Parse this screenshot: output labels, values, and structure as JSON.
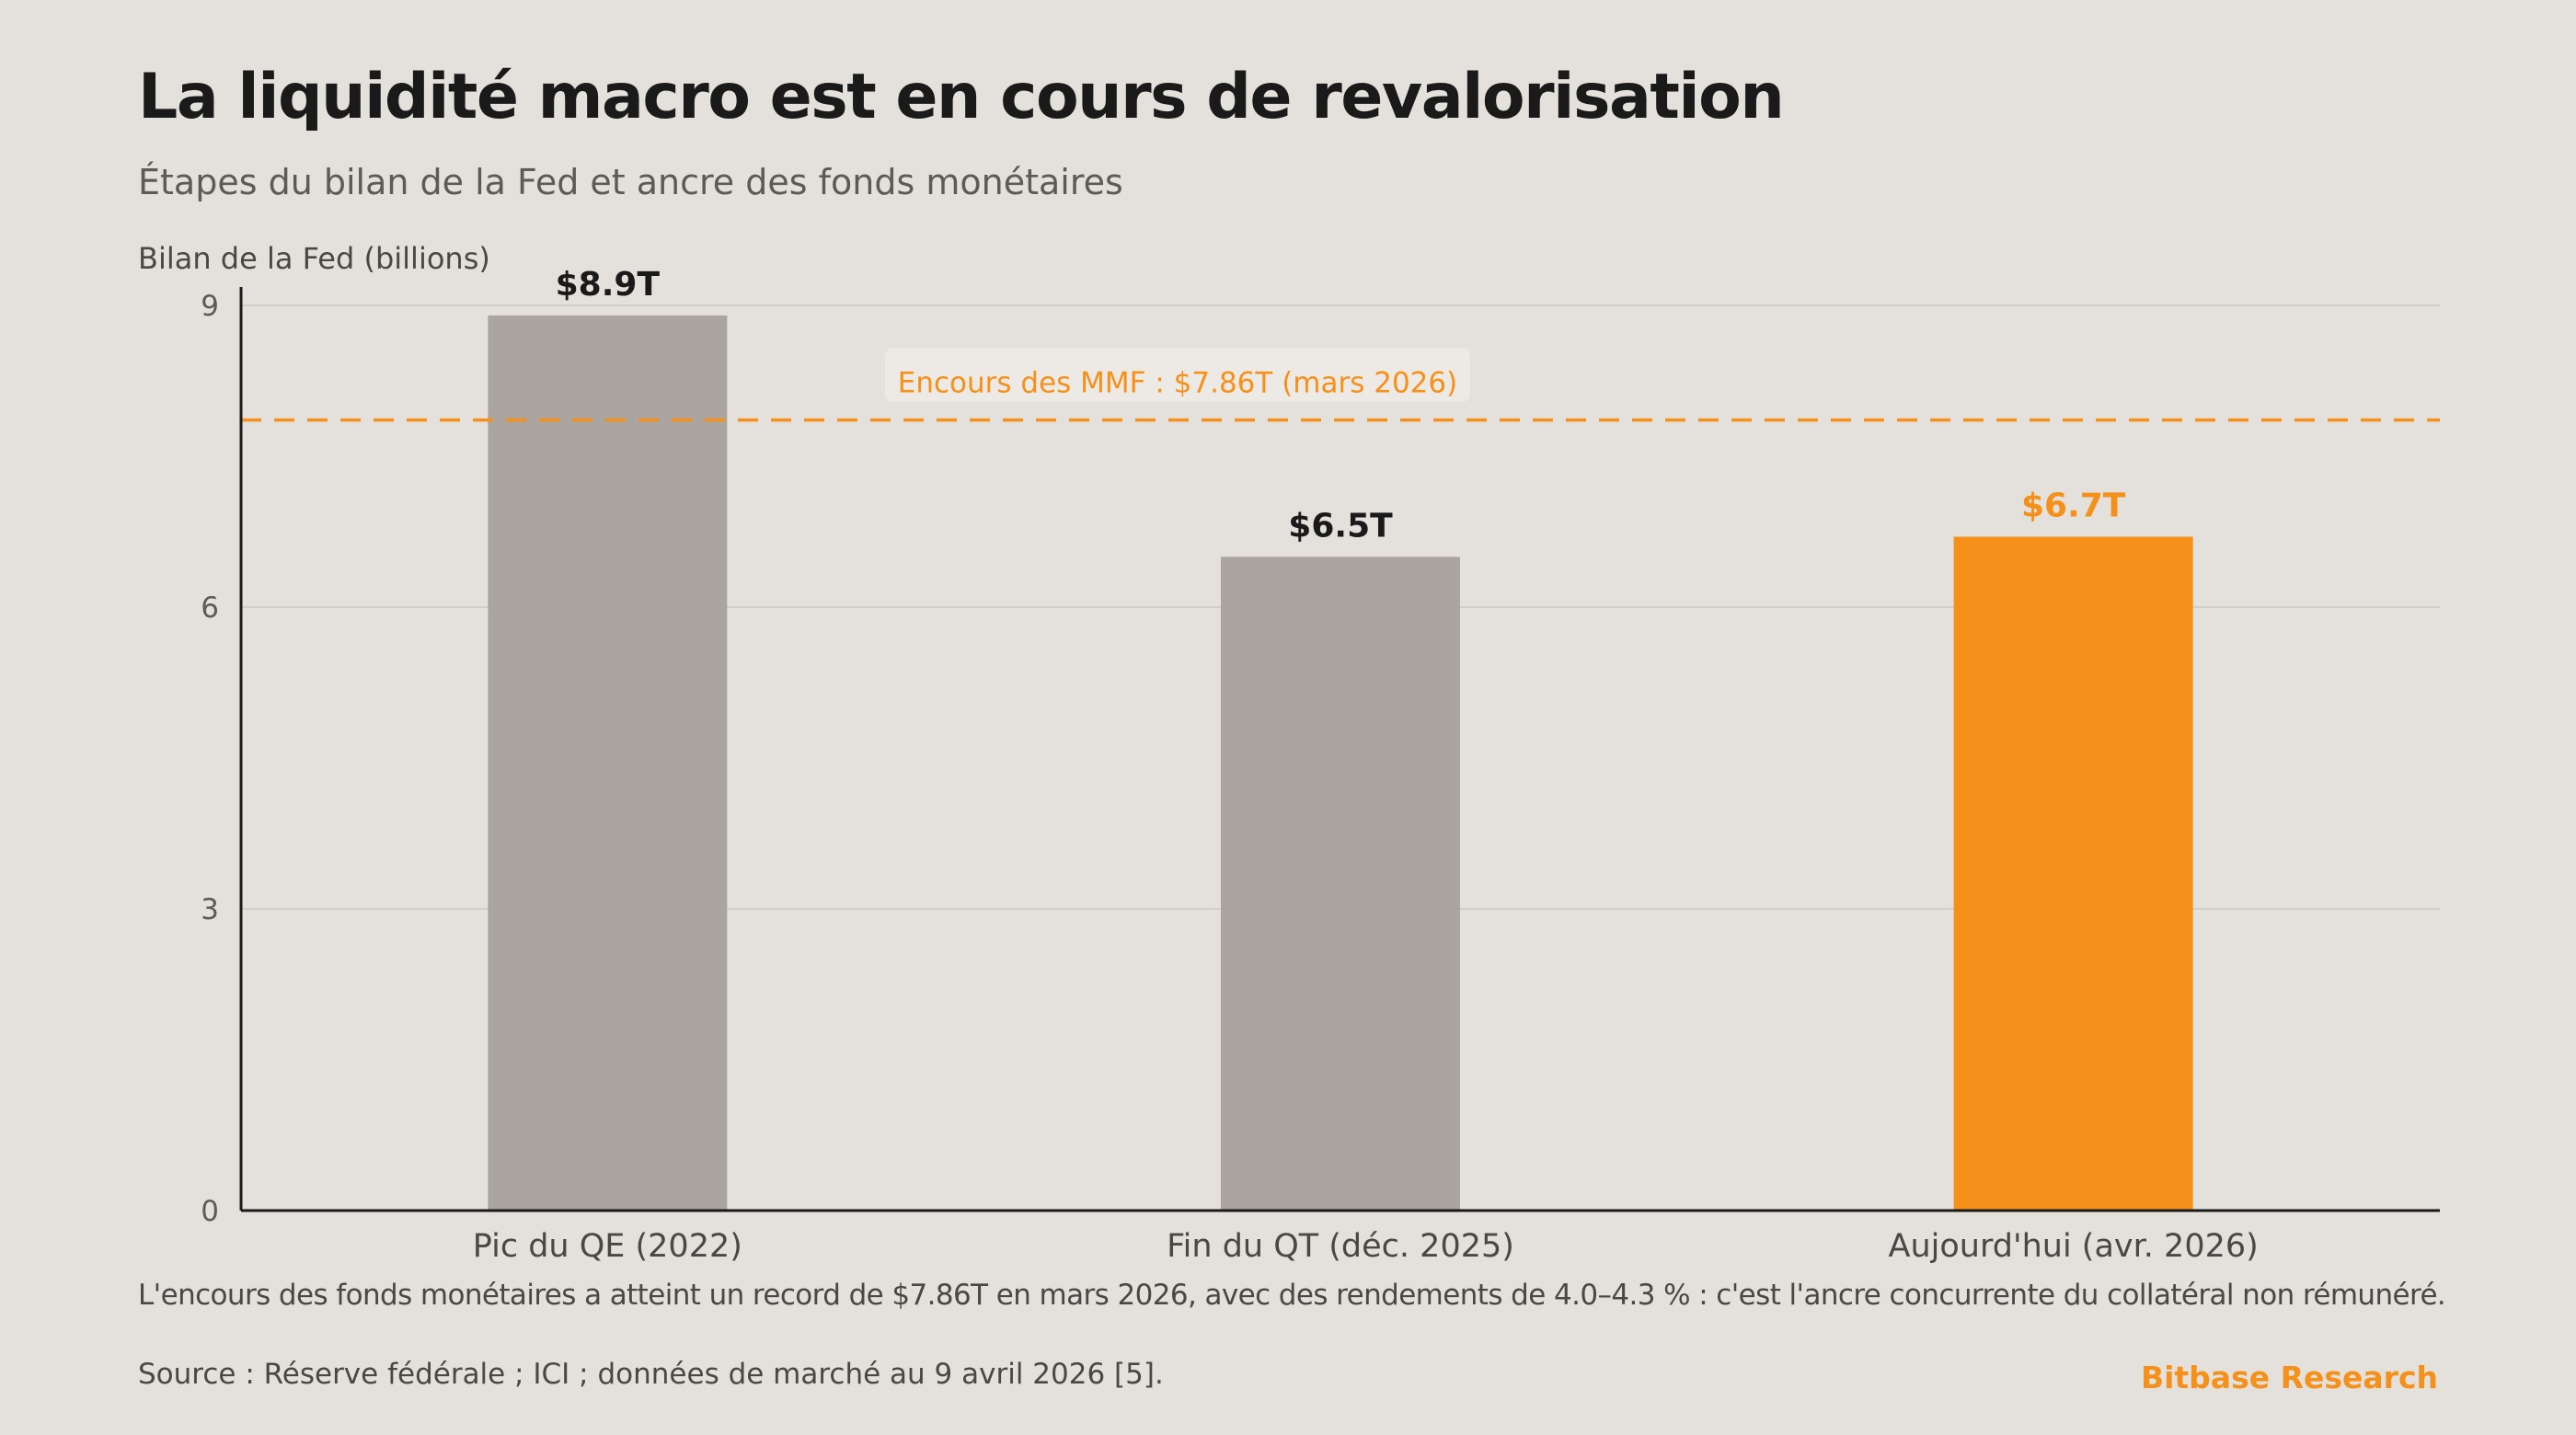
{
  "title": "La liquidité macro est en cours de revalorisation",
  "subtitle": "Étapes du bilan de la Fed et ancre des fonds monétaires",
  "caption": "L'encours des fonds monétaires a atteint un record de $7.86T en mars 2026, avec des rendements de 4.0–4.3 % : c'est l'ancre concurrente du collatéral non rémunéré.",
  "source": "Source : Réserve fédérale ; ICI ; données de marché au 9 avril 2026 [5].",
  "brand": "Bitbase Research",
  "colors": {
    "background": "#e4e0db",
    "bar_default": "#aaa59f",
    "bar_highlight": "#f5901a",
    "accent": "#f5901a",
    "grid": "#d2cec9",
    "axis": "#1a1a1a"
  },
  "chart_data": {
    "type": "bar",
    "ylabel": "Bilan de la Fed (billions)",
    "ylim": [
      0,
      9
    ],
    "yticks": [
      "0",
      "3",
      "6",
      "9"
    ],
    "grid": true,
    "categories": [
      "Pic du QE (2022)",
      "Fin du QT (déc. 2025)",
      "Aujourd'hui (avr. 2026)"
    ],
    "values": [
      8.9,
      6.5,
      6.7
    ],
    "value_labels": [
      "$8.9T",
      "$6.5T",
      "$6.7T"
    ],
    "highlight": [
      false,
      false,
      true
    ],
    "reference_line": {
      "value": 7.86,
      "label": "Encours des MMF : $7.86T (mars 2026)",
      "style": "dashed"
    }
  }
}
